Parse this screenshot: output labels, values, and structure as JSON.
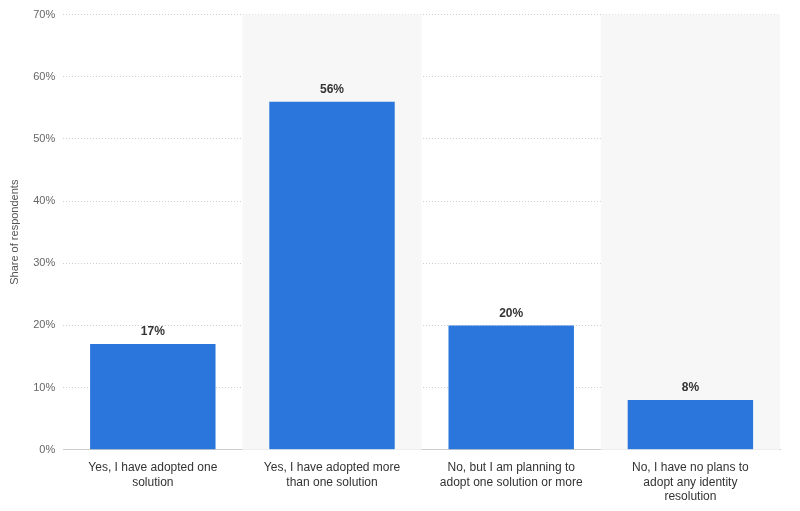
{
  "chart_data": {
    "type": "bar",
    "y_label": "Share of respondents",
    "categories": [
      "Yes, I have adopted one solution",
      "Yes, I have adopted more than one solution",
      "No, but I am planning to adopt one solution or more",
      "No, I have no plans to adopt any identity resolution"
    ],
    "values": [
      17,
      56,
      20,
      8
    ],
    "value_labels": [
      "17%",
      "56%",
      "20%",
      "8%"
    ],
    "color": "#2a76dd",
    "ylim": [
      0,
      70
    ],
    "yticks": [
      {
        "value": 0,
        "label": "0%"
      },
      {
        "value": 10,
        "label": "10%"
      },
      {
        "value": 20,
        "label": "20%"
      },
      {
        "value": 30,
        "label": "30%"
      },
      {
        "value": 40,
        "label": "40%"
      },
      {
        "value": 50,
        "label": "50%"
      },
      {
        "value": 60,
        "label": "60%"
      },
      {
        "value": 70,
        "label": "70%"
      }
    ],
    "grid": true,
    "data_labels": true
  }
}
